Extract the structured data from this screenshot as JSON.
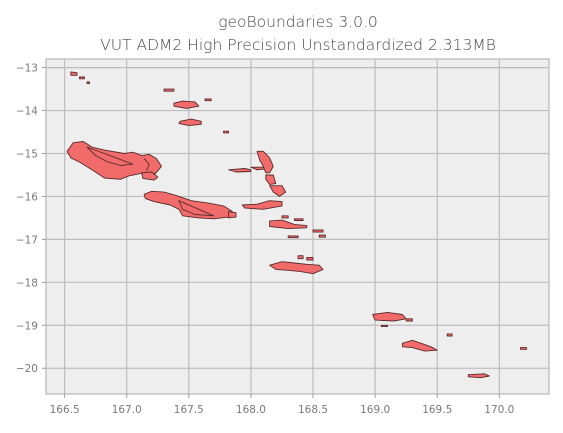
{
  "title": {
    "line1": "geoBoundaries 3.0.0",
    "line2": "VUT ADM2 High Precision Unstandardized 2.313MB"
  },
  "map": {
    "x_ticks": [
      "166.5",
      "167.0",
      "167.5",
      "168.0",
      "168.5",
      "169.0",
      "169.5",
      "170.0"
    ],
    "y_ticks": [
      "−13",
      "−14",
      "−15",
      "−16",
      "−17",
      "−18",
      "−19",
      "−20"
    ],
    "x_tick_values": [
      166.5,
      167.0,
      167.5,
      168.0,
      168.5,
      169.0,
      169.5,
      170.0
    ],
    "y_tick_values": [
      -13,
      -14,
      -15,
      -16,
      -17,
      -18,
      -19,
      -20
    ],
    "xlim": [
      166.35,
      170.4
    ],
    "ylim": [
      -20.6,
      -12.8
    ],
    "grid": true,
    "colors": {
      "fill": "#f26b6b",
      "edge": "#5a2b2b",
      "background": "#eeeeee",
      "grid": "#bdbdbd"
    },
    "regions": [
      {
        "name": "",
        "points": [
          [
            166.52,
            -14.95
          ],
          [
            166.57,
            -14.75
          ],
          [
            166.65,
            -14.72
          ],
          [
            166.72,
            -14.85
          ],
          [
            166.82,
            -14.92
          ],
          [
            166.98,
            -15.0
          ],
          [
            167.05,
            -14.97
          ],
          [
            167.12,
            -15.05
          ],
          [
            167.18,
            -15.02
          ],
          [
            167.24,
            -15.12
          ],
          [
            167.28,
            -15.3
          ],
          [
            167.23,
            -15.47
          ],
          [
            167.14,
            -15.45
          ],
          [
            167.02,
            -15.52
          ],
          [
            166.95,
            -15.6
          ],
          [
            166.82,
            -15.57
          ],
          [
            166.72,
            -15.38
          ],
          [
            166.62,
            -15.2
          ],
          [
            166.55,
            -15.1
          ]
        ]
      },
      {
        "name": "",
        "points": [
          [
            166.68,
            -14.85
          ],
          [
            166.75,
            -15.05
          ],
          [
            166.85,
            -15.2
          ],
          [
            166.95,
            -15.28
          ],
          [
            167.05,
            -15.25
          ]
        ]
      },
      {
        "name": "",
        "points": [
          [
            167.14,
            -15.12
          ],
          [
            167.18,
            -15.25
          ],
          [
            167.16,
            -15.4
          ]
        ]
      },
      {
        "name": "",
        "points": [
          [
            167.12,
            -15.45
          ],
          [
            167.2,
            -15.43
          ],
          [
            167.25,
            -15.55
          ],
          [
            167.22,
            -15.62
          ],
          [
            167.13,
            -15.58
          ]
        ]
      },
      {
        "name": "",
        "points": [
          [
            167.14,
            -15.95
          ],
          [
            167.2,
            -15.88
          ],
          [
            167.3,
            -15.9
          ],
          [
            167.4,
            -15.98
          ],
          [
            167.52,
            -16.1
          ],
          [
            167.65,
            -16.15
          ],
          [
            167.78,
            -16.22
          ],
          [
            167.85,
            -16.35
          ],
          [
            167.82,
            -16.48
          ],
          [
            167.7,
            -16.52
          ],
          [
            167.58,
            -16.5
          ],
          [
            167.45,
            -16.45
          ],
          [
            167.42,
            -16.3
          ],
          [
            167.35,
            -16.2
          ],
          [
            167.22,
            -16.12
          ],
          [
            167.15,
            -16.05
          ]
        ]
      },
      {
        "name": "",
        "points": [
          [
            167.42,
            -16.1
          ],
          [
            167.45,
            -16.3
          ],
          [
            167.55,
            -16.42
          ],
          [
            167.7,
            -16.45
          ]
        ]
      },
      {
        "name": "",
        "points": [
          [
            167.82,
            -16.35
          ],
          [
            167.88,
            -16.38
          ],
          [
            167.88,
            -16.48
          ],
          [
            167.82,
            -16.5
          ]
        ]
      },
      {
        "name": "",
        "points": [
          [
            167.38,
            -13.83
          ],
          [
            167.45,
            -13.78
          ],
          [
            167.55,
            -13.8
          ],
          [
            167.58,
            -13.9
          ],
          [
            167.48,
            -13.95
          ],
          [
            167.38,
            -13.9
          ]
        ]
      },
      {
        "name": "",
        "points": [
          [
            167.43,
            -14.25
          ],
          [
            167.52,
            -14.2
          ],
          [
            167.6,
            -14.25
          ],
          [
            167.6,
            -14.32
          ],
          [
            167.5,
            -14.35
          ],
          [
            167.42,
            -14.3
          ]
        ]
      },
      {
        "name": "",
        "points": [
          [
            167.3,
            -13.5
          ],
          [
            167.38,
            -13.5
          ],
          [
            167.38,
            -13.55
          ],
          [
            167.3,
            -13.55
          ]
        ]
      },
      {
        "name": "",
        "points": [
          [
            166.55,
            -13.1
          ],
          [
            166.6,
            -13.12
          ],
          [
            166.6,
            -13.18
          ],
          [
            166.55,
            -13.18
          ]
        ]
      },
      {
        "name": "",
        "points": [
          [
            166.62,
            -13.22
          ],
          [
            166.66,
            -13.22
          ],
          [
            166.66,
            -13.26
          ],
          [
            166.62,
            -13.26
          ]
        ]
      },
      {
        "name": "",
        "points": [
          [
            166.68,
            -13.33
          ],
          [
            166.7,
            -13.33
          ],
          [
            166.7,
            -13.37
          ],
          [
            166.68,
            -13.37
          ]
        ]
      },
      {
        "name": "",
        "points": [
          [
            167.63,
            -13.73
          ],
          [
            167.68,
            -13.73
          ],
          [
            167.68,
            -13.77
          ],
          [
            167.63,
            -13.77
          ]
        ]
      },
      {
        "name": "",
        "points": [
          [
            167.82,
            -15.38
          ],
          [
            167.95,
            -15.35
          ],
          [
            168.0,
            -15.38
          ],
          [
            168.0,
            -15.42
          ],
          [
            167.88,
            -15.43
          ]
        ]
      },
      {
        "name": "",
        "points": [
          [
            168.0,
            -15.32
          ],
          [
            168.1,
            -15.32
          ],
          [
            168.15,
            -15.35
          ],
          [
            168.05,
            -15.38
          ]
        ]
      },
      {
        "name": "",
        "points": [
          [
            168.05,
            -14.95
          ],
          [
            168.1,
            -14.95
          ],
          [
            168.15,
            -15.1
          ],
          [
            168.18,
            -15.3
          ],
          [
            168.15,
            -15.45
          ],
          [
            168.12,
            -15.45
          ],
          [
            168.1,
            -15.3
          ],
          [
            168.07,
            -15.15
          ]
        ]
      },
      {
        "name": "",
        "points": [
          [
            168.12,
            -15.5
          ],
          [
            168.18,
            -15.5
          ],
          [
            168.2,
            -15.7
          ],
          [
            168.15,
            -15.72
          ],
          [
            168.12,
            -15.6
          ]
        ]
      },
      {
        "name": "",
        "points": [
          [
            168.15,
            -15.75
          ],
          [
            168.25,
            -15.75
          ],
          [
            168.28,
            -15.9
          ],
          [
            168.23,
            -16.0
          ],
          [
            168.18,
            -15.9
          ]
        ]
      },
      {
        "name": "",
        "points": [
          [
            167.93,
            -16.2
          ],
          [
            168.05,
            -16.18
          ],
          [
            168.15,
            -16.1
          ],
          [
            168.25,
            -16.12
          ],
          [
            168.25,
            -16.22
          ],
          [
            168.1,
            -16.3
          ],
          [
            167.95,
            -16.27
          ]
        ]
      },
      {
        "name": "",
        "points": [
          [
            168.15,
            -16.57
          ],
          [
            168.25,
            -16.55
          ],
          [
            168.35,
            -16.65
          ],
          [
            168.45,
            -16.68
          ],
          [
            168.45,
            -16.73
          ],
          [
            168.3,
            -16.75
          ],
          [
            168.15,
            -16.7
          ]
        ]
      },
      {
        "name": "",
        "points": [
          [
            168.25,
            -16.45
          ],
          [
            168.3,
            -16.45
          ],
          [
            168.3,
            -16.5
          ],
          [
            168.25,
            -16.5
          ]
        ]
      },
      {
        "name": "",
        "points": [
          [
            168.35,
            -16.52
          ],
          [
            168.42,
            -16.52
          ],
          [
            168.42,
            -16.56
          ],
          [
            168.35,
            -16.56
          ]
        ]
      },
      {
        "name": "",
        "points": [
          [
            168.5,
            -16.78
          ],
          [
            168.58,
            -16.78
          ],
          [
            168.58,
            -16.83
          ],
          [
            168.5,
            -16.83
          ]
        ]
      },
      {
        "name": "",
        "points": [
          [
            168.3,
            -16.92
          ],
          [
            168.38,
            -16.92
          ],
          [
            168.38,
            -16.96
          ],
          [
            168.3,
            -16.96
          ]
        ]
      },
      {
        "name": "",
        "points": [
          [
            168.55,
            -16.9
          ],
          [
            168.6,
            -16.9
          ],
          [
            168.6,
            -16.95
          ],
          [
            168.55,
            -16.95
          ]
        ]
      },
      {
        "name": "",
        "points": [
          [
            168.15,
            -17.6
          ],
          [
            168.25,
            -17.52
          ],
          [
            168.35,
            -17.55
          ],
          [
            168.45,
            -17.58
          ],
          [
            168.55,
            -17.6
          ],
          [
            168.58,
            -17.7
          ],
          [
            168.5,
            -17.8
          ],
          [
            168.4,
            -17.75
          ],
          [
            168.3,
            -17.72
          ],
          [
            168.2,
            -17.7
          ]
        ]
      },
      {
        "name": "",
        "points": [
          [
            168.38,
            -17.38
          ],
          [
            168.42,
            -17.38
          ],
          [
            168.42,
            -17.45
          ],
          [
            168.38,
            -17.45
          ]
        ]
      },
      {
        "name": "",
        "points": [
          [
            168.45,
            -17.42
          ],
          [
            168.5,
            -17.42
          ],
          [
            168.5,
            -17.48
          ],
          [
            168.45,
            -17.48
          ]
        ]
      },
      {
        "name": "",
        "points": [
          [
            168.98,
            -18.75
          ],
          [
            169.1,
            -18.7
          ],
          [
            169.22,
            -18.75
          ],
          [
            169.25,
            -18.85
          ],
          [
            169.15,
            -18.9
          ],
          [
            169.0,
            -18.88
          ]
        ]
      },
      {
        "name": "",
        "points": [
          [
            169.25,
            -18.85
          ],
          [
            169.3,
            -18.85
          ],
          [
            169.3,
            -18.9
          ],
          [
            169.25,
            -18.9
          ]
        ]
      },
      {
        "name": "",
        "points": [
          [
            169.05,
            -19.0
          ],
          [
            169.1,
            -19.0
          ],
          [
            169.1,
            -19.03
          ],
          [
            169.05,
            -19.03
          ]
        ]
      },
      {
        "name": "",
        "points": [
          [
            169.22,
            -19.42
          ],
          [
            169.3,
            -19.35
          ],
          [
            169.38,
            -19.43
          ],
          [
            169.45,
            -19.5
          ],
          [
            169.5,
            -19.58
          ],
          [
            169.4,
            -19.6
          ],
          [
            169.3,
            -19.52
          ],
          [
            169.22,
            -19.5
          ]
        ]
      },
      {
        "name": "",
        "points": [
          [
            169.58,
            -19.2
          ],
          [
            169.62,
            -19.2
          ],
          [
            169.62,
            -19.25
          ],
          [
            169.58,
            -19.25
          ]
        ]
      },
      {
        "name": "",
        "points": [
          [
            169.75,
            -20.15
          ],
          [
            169.88,
            -20.13
          ],
          [
            169.92,
            -20.18
          ],
          [
            169.85,
            -20.22
          ],
          [
            169.75,
            -20.2
          ]
        ]
      },
      {
        "name": "",
        "points": [
          [
            170.17,
            -19.52
          ],
          [
            170.22,
            -19.52
          ],
          [
            170.22,
            -19.56
          ],
          [
            170.17,
            -19.56
          ]
        ]
      },
      {
        "name": "",
        "points": [
          [
            167.78,
            -14.48
          ],
          [
            167.82,
            -14.48
          ],
          [
            167.82,
            -14.52
          ],
          [
            167.78,
            -14.52
          ]
        ]
      }
    ]
  }
}
